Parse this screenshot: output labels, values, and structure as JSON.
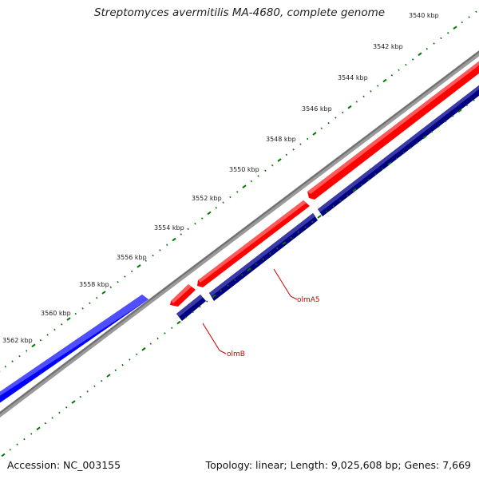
{
  "title": "Streptomyces avermitilis MA-4680, complete genome",
  "footer": {
    "accession": "Accession: NC_003155",
    "summary": "Topology: linear; Length: 9,025,608 bp; Genes: 7,669"
  },
  "ticks": [
    {
      "label": "3540 kbp"
    },
    {
      "label": "3542 kbp"
    },
    {
      "label": "3544 kbp"
    },
    {
      "label": "3546 kbp"
    },
    {
      "label": "3548 kbp"
    },
    {
      "label": "3550 kbp"
    },
    {
      "label": "3552 kbp"
    },
    {
      "label": "3554 kbp"
    },
    {
      "label": "3556 kbp"
    },
    {
      "label": "3558 kbp"
    },
    {
      "label": "3560 kbp"
    },
    {
      "label": "3562 kbp"
    }
  ],
  "genes": [
    {
      "name": "olmA5",
      "color": "#ff0000",
      "strand": "forward"
    },
    {
      "name": "olmB",
      "color": "#000080",
      "strand": "reverse"
    },
    {
      "name": "",
      "color": "#0000ff",
      "strand": "forward"
    }
  ],
  "colors": {
    "backbone": "#808080",
    "tick": "#007700",
    "gene_label": "#cc0000",
    "text": "#222222"
  }
}
